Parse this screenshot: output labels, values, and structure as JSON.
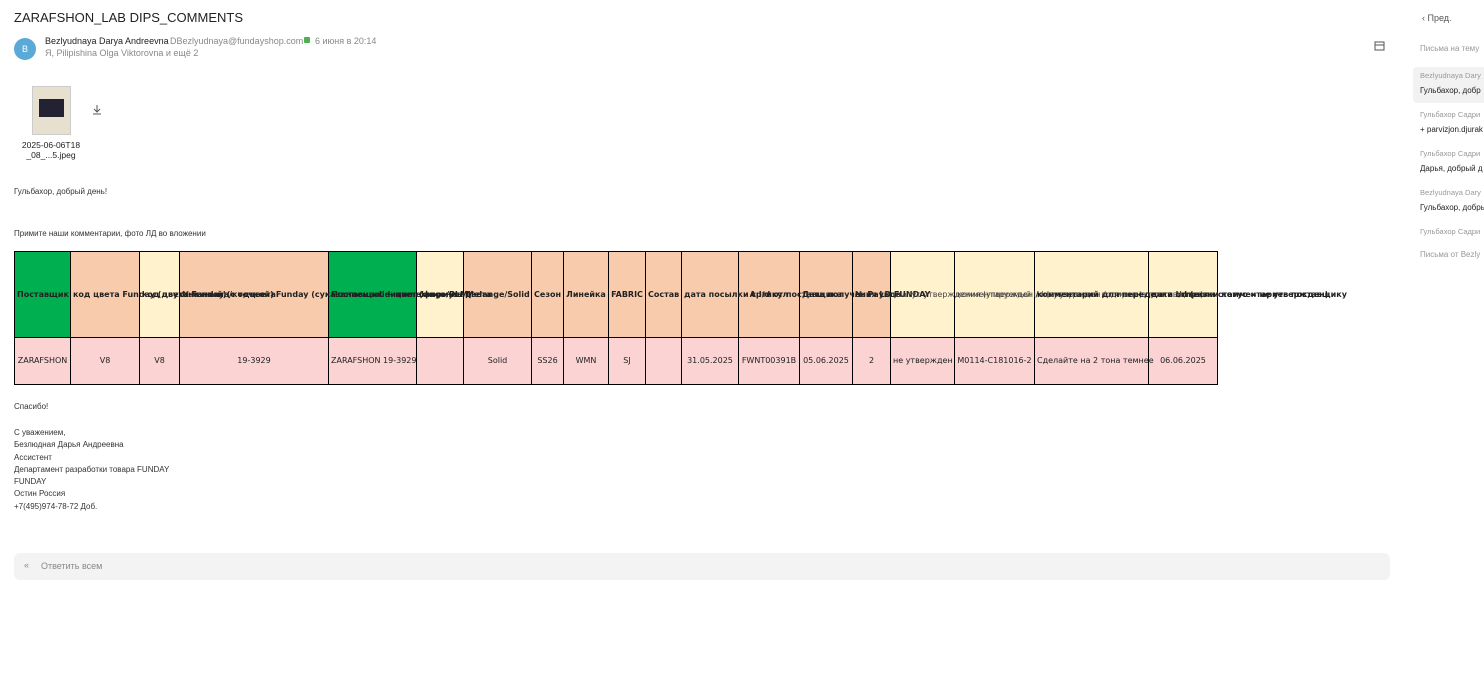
{
  "header": {
    "subject": "ZARAFSHON_LAB DIPS_COMMENTS",
    "avatar": "B",
    "sender_name": "Bezlyudnaya Darya Andreevna",
    "sender_email": "DBezlyudnaya@fundayshop.com",
    "date": "6 июня в 20:14",
    "recipients": "Я, Pilipishina Olga Viktorovna и ещё 2"
  },
  "attachment": {
    "name": "2025-06-06T18_08_...5.jpeg"
  },
  "body": {
    "greeting": "Гульбахор, добрый день!",
    "intro": "Примите наши комментарии, фото ЛД во вложении",
    "thanks": "Спасибо!",
    "signature": [
      "С уважением,",
      "Безлюдная Дарья Андреевна",
      "Ассистент",
      "Департамент разработки товара FUNDAY",
      "FUNDAY",
      "Остин Россия",
      "+7(495)974-78-72 Доб."
    ]
  },
  "table": {
    "header": [
      "Поставщик",
      "код цвета Funday (двухзначный)",
      "код цвета Funday (с точкой)",
      "№пантона/кодцветаFunday (суказаниемsolidилиmelange/PLM)",
      "Поставщик + цвет (формула)",
      "описание цвета",
      "Melange/Solid",
      "Сезон",
      "Линейка",
      "FABRIC",
      "Состав",
      "дата посылки с l/d от поставщика",
      "Артикул",
      "Дата получения LD FUNDAY",
      "№ Раунда",
      "статус утверждения (утвержден / не утвержден / отмена)",
      "комментируемый l/d (внутренняя кодировка поставщика)",
      "комментарий для переделки l/d (если статус = не утвержден)",
      "дата отправки комментариев поставщику"
    ],
    "rows": [
      [
        "ZARAFSHON",
        "V8",
        "V8",
        "19-3929",
        "ZARAFSHON 19-3929",
        null,
        "Solid",
        "SS26",
        "WMN",
        "SJ",
        null,
        "31.05.2025",
        "FWNT00391B",
        "05.06.2025",
        "2",
        "не утвержден",
        "M0114-C181016-2",
        "Сделайте на 2 тона темнее",
        "06.06.2025"
      ]
    ]
  },
  "reply": {
    "label": "Ответить всем"
  },
  "sidebar": {
    "prev": "Пред.",
    "thread_title": "Письма на тему",
    "items": [
      {
        "sender": "Bezlyudnaya Dary",
        "snippet": "Гульбахор, добр"
      },
      {
        "sender": "Гульбахор Садри",
        "snippet": "+ parvizjon.djurak"
      },
      {
        "sender": "Гульбахор Садри",
        "snippet": "Дарья, добрый д"
      },
      {
        "sender": "Bezlyudnaya Dary",
        "snippet": "Гульбахор, добрь"
      },
      {
        "sender": "Гульбахор Садри"
      }
    ],
    "from_title": "Письма от Bezly"
  }
}
